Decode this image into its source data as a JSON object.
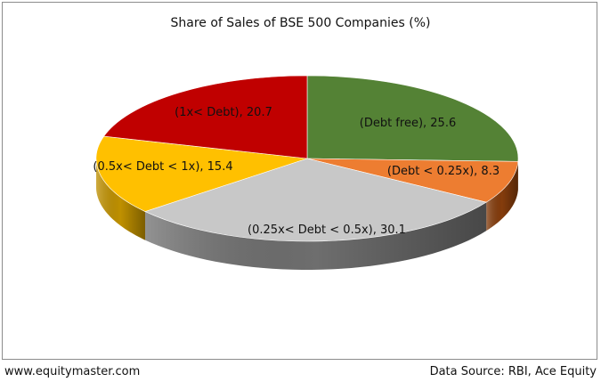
{
  "chart_data": {
    "type": "pie",
    "title": "Share of Sales of BSE 500 Companies (%)",
    "slices": [
      {
        "label": "(Debt free)",
        "value": 25.6,
        "color": "#548235",
        "side": "#375623"
      },
      {
        "label": "(Debt < 0.25x)",
        "value": 8.3,
        "color": "#ED7D31",
        "side": "#843C0C"
      },
      {
        "label": "(0.25x< Debt < 0.5x)",
        "value": 30.1,
        "color": "#C8C8C8",
        "side": "#6E6E6E"
      },
      {
        "label": "(0.5x< Debt < 1x)",
        "value": 15.4,
        "color": "#FFC000",
        "side": "#BF9000"
      },
      {
        "label": "(1x< Debt)",
        "value": 20.7,
        "color": "#C00000",
        "side": "#7A0000"
      }
    ]
  },
  "footer": {
    "source_left": "www.equitymaster.com",
    "source_right": "Data Source: RBI, Ace Equity"
  }
}
